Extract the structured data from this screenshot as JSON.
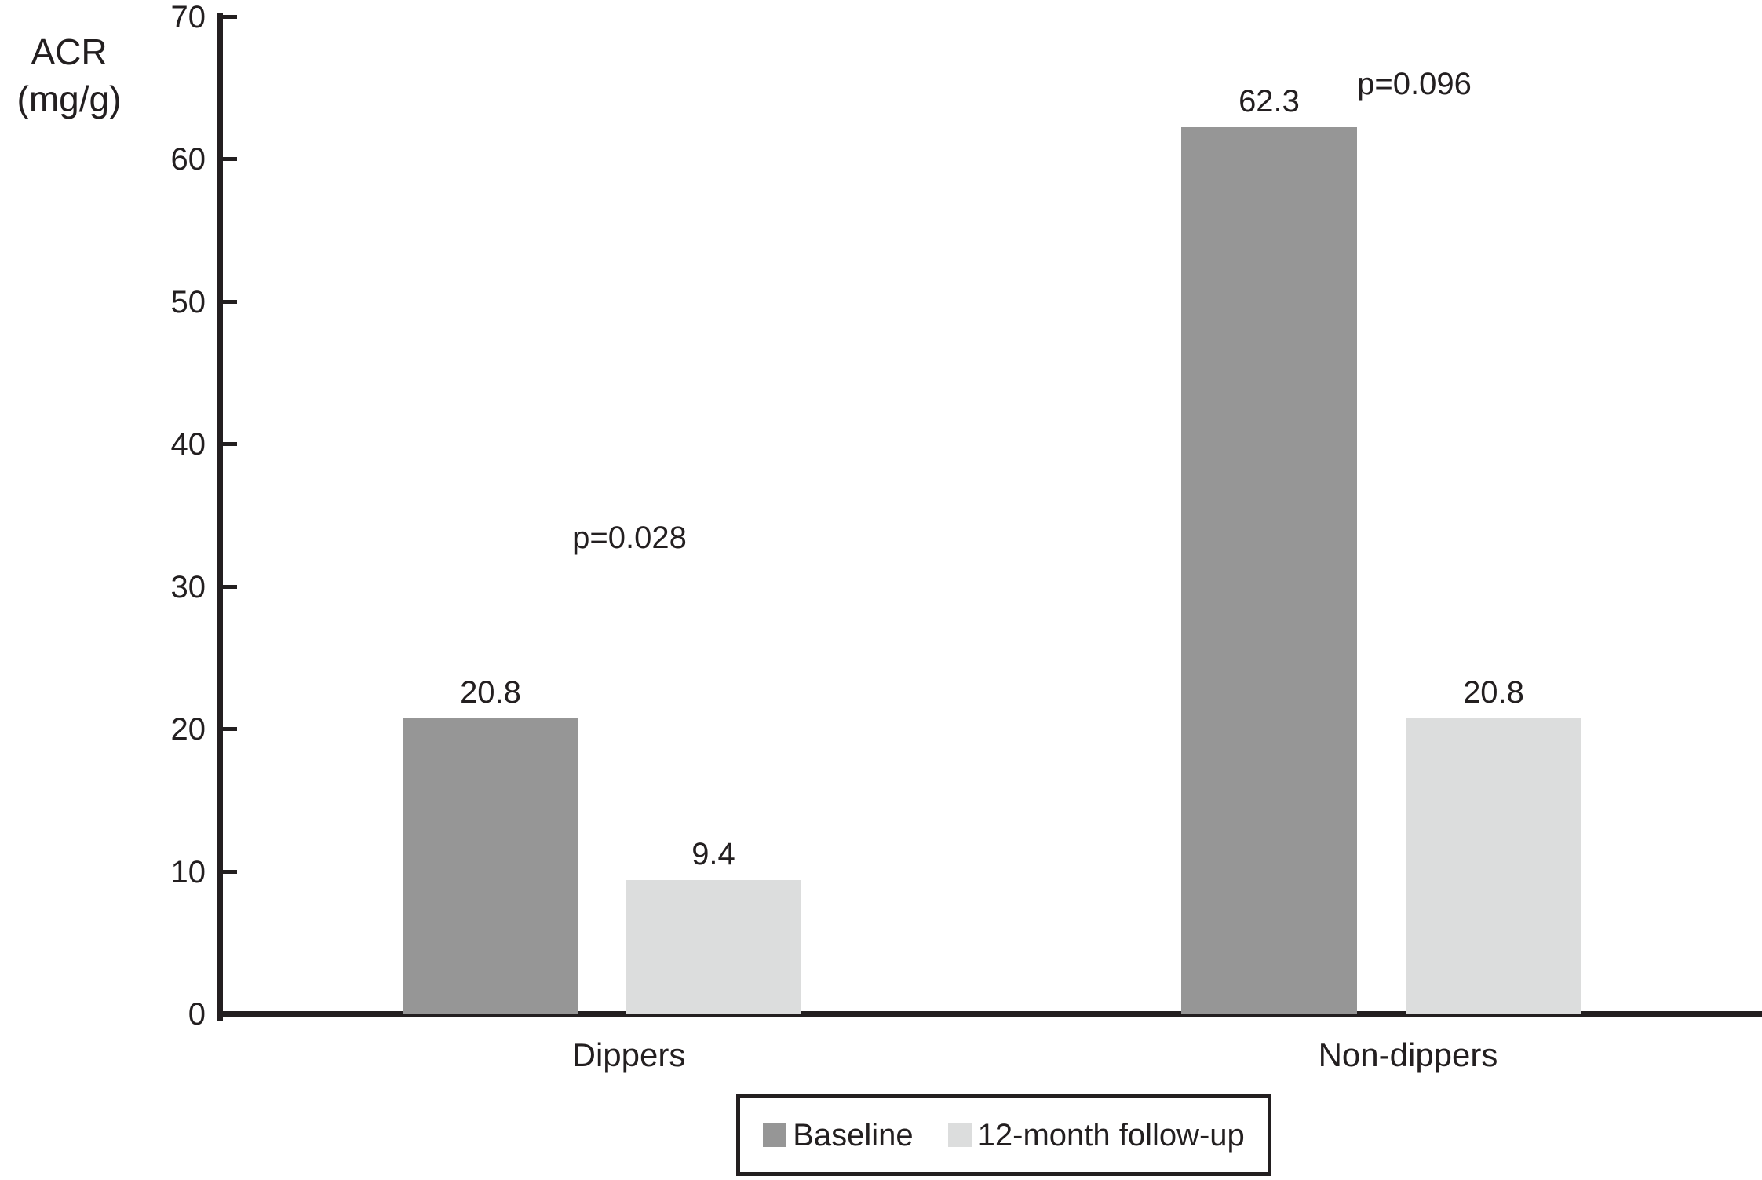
{
  "chart_data": {
    "type": "bar",
    "title": "",
    "ylabel_lines": [
      "ACR",
      "(mg/g)"
    ],
    "ylim": [
      0,
      70
    ],
    "yticks": [
      0,
      10,
      20,
      30,
      40,
      50,
      60,
      70
    ],
    "categories": [
      "Dippers",
      "Non-dippers"
    ],
    "series": [
      {
        "name": "Baseline",
        "color": "#969696",
        "values": [
          20.8,
          62.3
        ],
        "value_labels": [
          "20.8",
          "62.3"
        ]
      },
      {
        "name": "12-month follow-up",
        "color": "#dcdddd",
        "values": [
          9.4,
          20.8
        ],
        "value_labels": [
          "9.4",
          "20.8"
        ]
      }
    ],
    "annotations": [
      {
        "text": "p=0.028",
        "category": "Dippers"
      },
      {
        "text": "p=0.096",
        "category": "Non-dippers"
      }
    ],
    "legend_position": "bottom-center",
    "legend_border": true,
    "grid": false,
    "background_color": "#ffffff",
    "axis_color": "#231f20",
    "text_color": "#231f20"
  }
}
